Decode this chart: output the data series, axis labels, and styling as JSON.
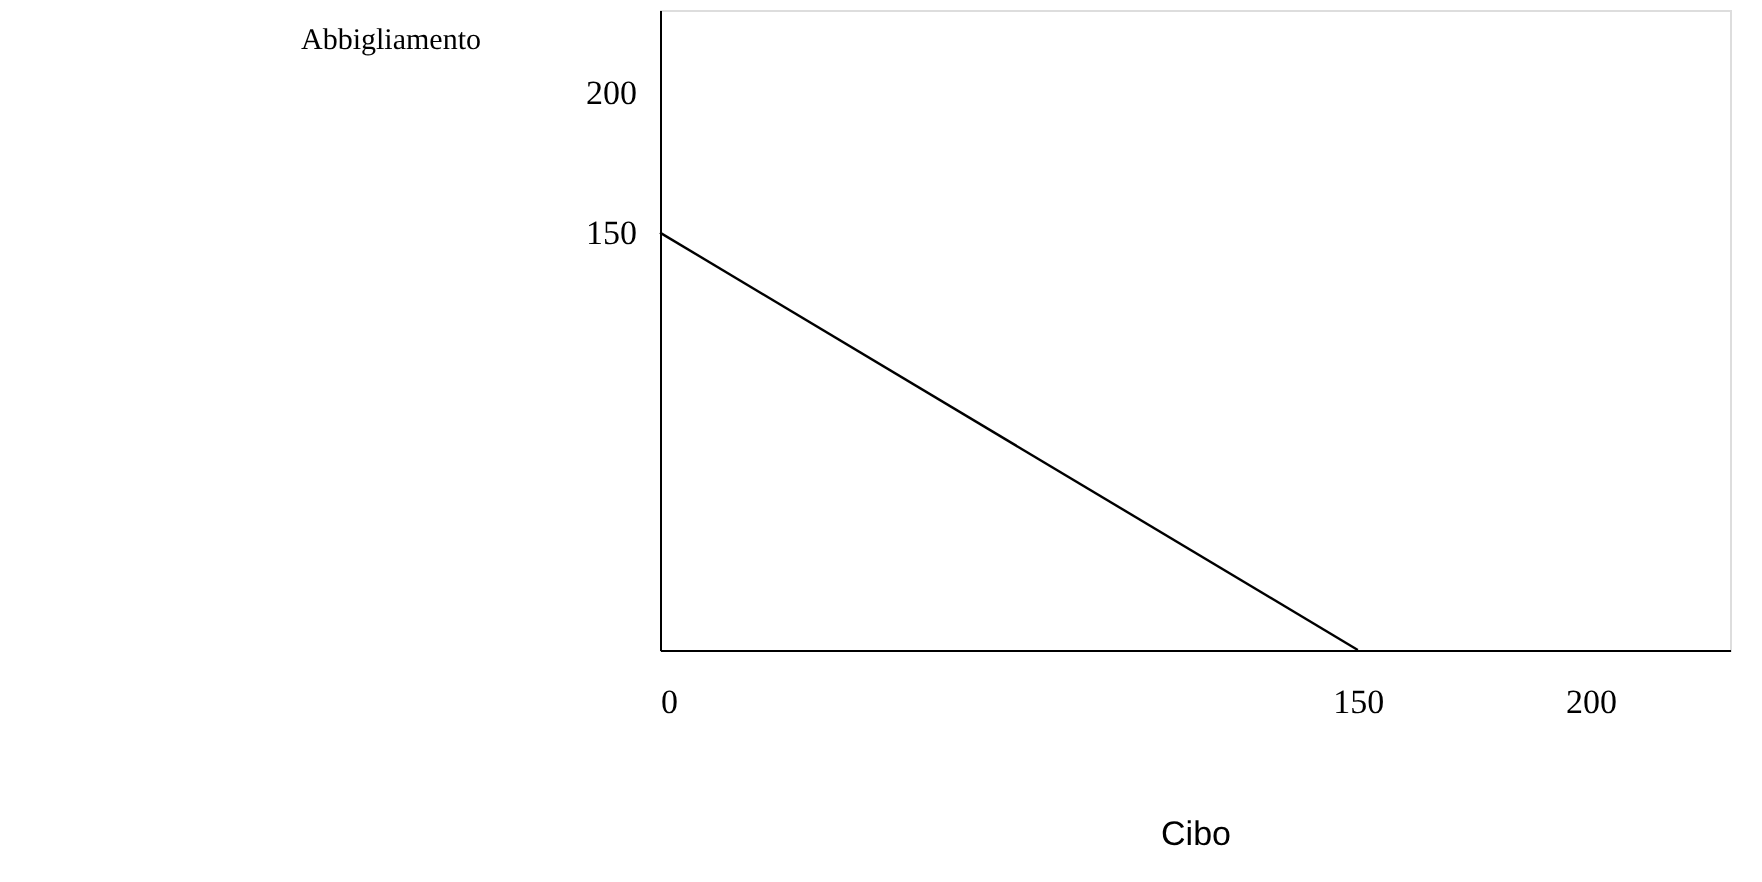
{
  "chart_data": {
    "type": "line",
    "xlabel": "Cibo",
    "ylabel": "Abbigliamento",
    "x": [
      0,
      150
    ],
    "series": [
      {
        "color": "#000000",
        "values": [
          150,
          0
        ]
      }
    ],
    "xlim": [
      0,
      230
    ],
    "ylim": [
      0,
      230
    ],
    "xticks": [
      0,
      150,
      200
    ],
    "yticks": [
      150,
      200
    ],
    "grid": false,
    "marker": "none",
    "line_style": "solid"
  }
}
